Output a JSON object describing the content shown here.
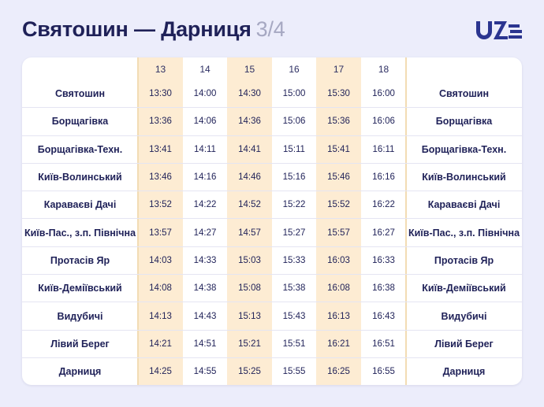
{
  "title": {
    "route": "Святошин — Дарниця",
    "page": "3/4"
  },
  "logo_icon": "uz-railways-logo",
  "colors": {
    "background": "#ecedfb",
    "text": "#1f2158",
    "highlight": "#fdecd3",
    "logo": "#2b3590"
  },
  "table": {
    "train_numbers": [
      "13",
      "14",
      "15",
      "16",
      "17",
      "18"
    ],
    "rows": [
      {
        "station": "Святошин",
        "times": [
          "13:30",
          "14:00",
          "14:30",
          "15:00",
          "15:30",
          "16:00"
        ]
      },
      {
        "station": "Борщагівка",
        "times": [
          "13:36",
          "14:06",
          "14:36",
          "15:06",
          "15:36",
          "16:06"
        ]
      },
      {
        "station": "Борщагівка-Техн.",
        "times": [
          "13:41",
          "14:11",
          "14:41",
          "15:11",
          "15:41",
          "16:11"
        ]
      },
      {
        "station": "Київ-Волинський",
        "times": [
          "13:46",
          "14:16",
          "14:46",
          "15:16",
          "15:46",
          "16:16"
        ]
      },
      {
        "station": "Караваєві Дачі",
        "times": [
          "13:52",
          "14:22",
          "14:52",
          "15:22",
          "15:52",
          "16:22"
        ]
      },
      {
        "station": "Київ-Пас., з.п. Північна",
        "times": [
          "13:57",
          "14:27",
          "14:57",
          "15:27",
          "15:57",
          "16:27"
        ]
      },
      {
        "station": "Протасів Яр",
        "times": [
          "14:03",
          "14:33",
          "15:03",
          "15:33",
          "16:03",
          "16:33"
        ]
      },
      {
        "station": "Київ-Деміївський",
        "times": [
          "14:08",
          "14:38",
          "15:08",
          "15:38",
          "16:08",
          "16:38"
        ]
      },
      {
        "station": "Видубичі",
        "times": [
          "14:13",
          "14:43",
          "15:13",
          "15:43",
          "16:13",
          "16:43"
        ]
      },
      {
        "station": "Лівий Берег",
        "times": [
          "14:21",
          "14:51",
          "15:21",
          "15:51",
          "16:21",
          "16:51"
        ]
      },
      {
        "station": "Дарниця",
        "times": [
          "14:25",
          "14:55",
          "15:25",
          "15:55",
          "16:25",
          "16:55"
        ]
      }
    ]
  }
}
